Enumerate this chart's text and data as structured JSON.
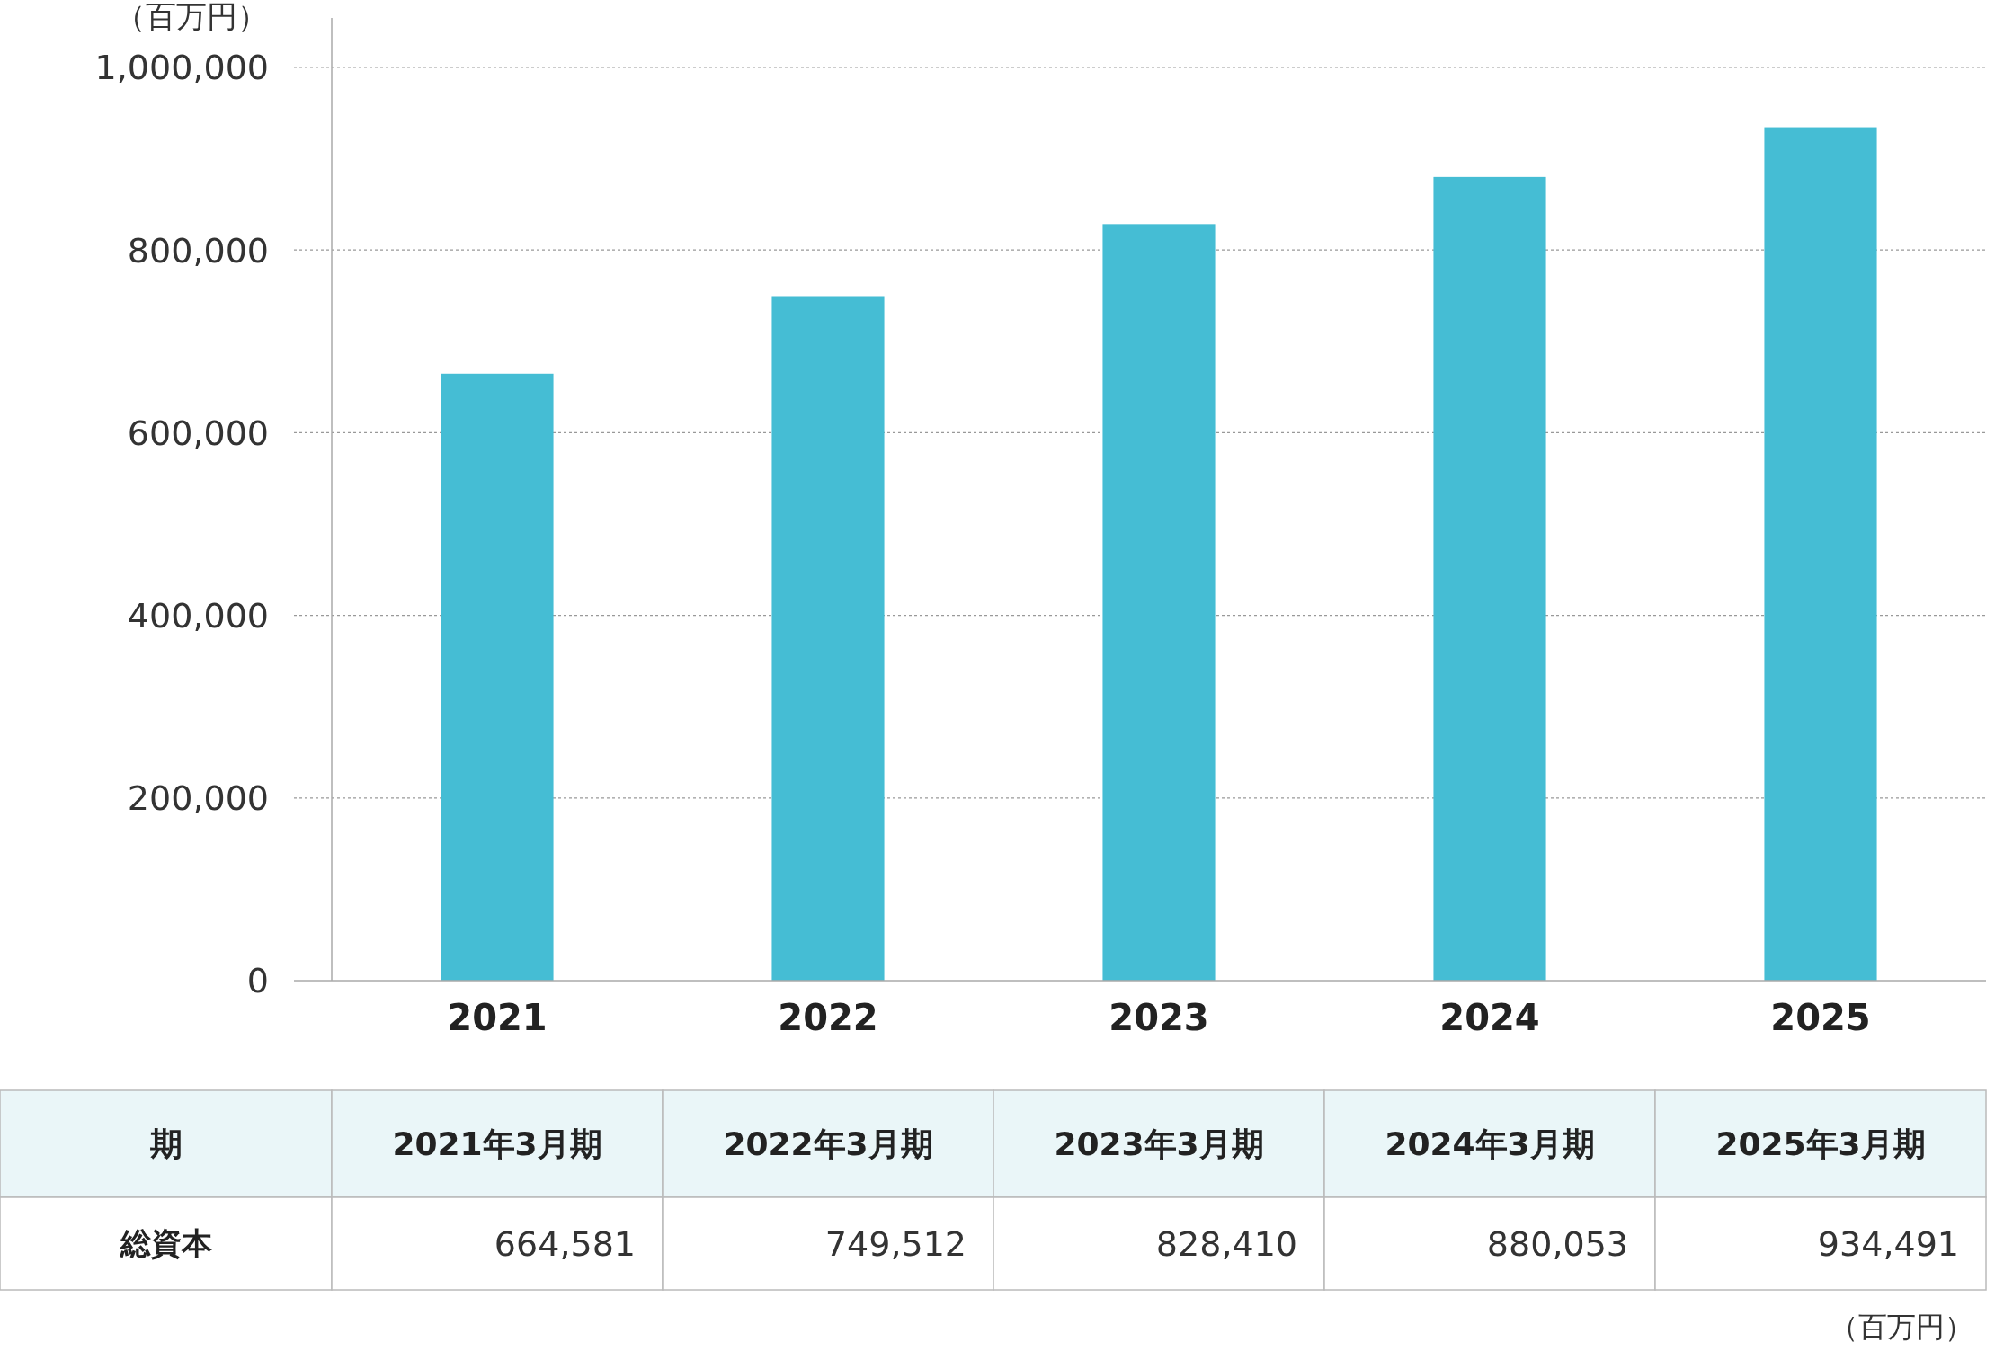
{
  "chart_data": {
    "type": "bar",
    "ylabel": "（百万円）",
    "categories": [
      "2021",
      "2022",
      "2023",
      "2024",
      "2025"
    ],
    "values": [
      664581,
      749512,
      828410,
      880053,
      934491
    ],
    "color": "#45bdd4",
    "ylim": [
      0,
      1000000
    ],
    "yticks": [
      0,
      {
        "value": 200000,
        "label": "200,000"
      },
      {
        "value": 400000,
        "label": "400,000"
      },
      {
        "value": 600000,
        "label": "600,000"
      },
      {
        "value": 800000,
        "label": "800,000"
      },
      {
        "value": 1000000,
        "label": "1,000,000"
      }
    ],
    "grid": "y",
    "value_labels": [
      "664,581",
      "749,512",
      "828,410",
      "880,053",
      "934,491"
    ],
    "annotations": [
      "期",
      "2021年3月期",
      "2022年3月期",
      "2023年3月期",
      "2024年3月期",
      "2025年3月期",
      "総資本",
      "（百万円）"
    ]
  }
}
